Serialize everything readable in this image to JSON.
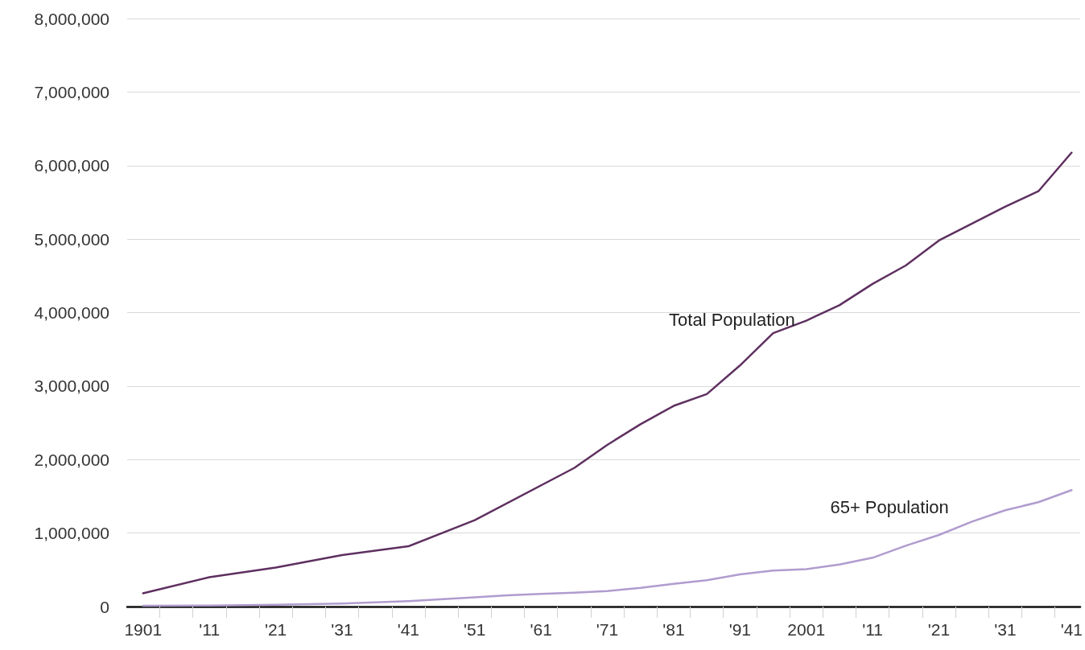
{
  "chart_data": {
    "type": "line",
    "series": [
      {
        "name": "Total Population",
        "color": "#5e3060",
        "x": [
          1901,
          1911,
          1921,
          1931,
          1941,
          1951,
          1966,
          1971,
          1976,
          1981,
          1986,
          1991,
          1996,
          2001,
          2006,
          2011,
          2016,
          2021,
          2026,
          2031,
          2036,
          2041
        ],
        "values": [
          180000,
          400000,
          530000,
          700000,
          820000,
          1175000,
          1885000,
          2200000,
          2480000,
          2730000,
          2890000,
          3280000,
          3720000,
          3890000,
          4100000,
          4390000,
          4640000,
          4980000,
          5210000,
          5440000,
          5650000,
          6175000
        ]
      },
      {
        "name": "65+ Population",
        "color": "#b09ccf",
        "x": [
          1901,
          1911,
          1921,
          1931,
          1941,
          1951,
          1956,
          1961,
          1966,
          1971,
          1976,
          1981,
          1986,
          1991,
          1996,
          2001,
          2006,
          2011,
          2016,
          2021,
          2026,
          2031,
          2036,
          2041
        ],
        "values": [
          10000,
          15000,
          25000,
          40000,
          73000,
          125000,
          153000,
          172000,
          190000,
          211000,
          255000,
          310000,
          358000,
          438000,
          489000,
          509000,
          572000,
          664000,
          828000,
          974000,
          1156000,
          1310000,
          1420000,
          1584000
        ]
      }
    ],
    "xlim": [
      1898.6,
      2042.3
    ],
    "xticks": [
      {
        "value": 1901,
        "label": "1901"
      },
      {
        "value": 1911,
        "label": "'11"
      },
      {
        "value": 1921,
        "label": "'21"
      },
      {
        "value": 1931,
        "label": "'31"
      },
      {
        "value": 1941,
        "label": "'41"
      },
      {
        "value": 1951,
        "label": "'51"
      },
      {
        "value": 1961,
        "label": "'61"
      },
      {
        "value": 1971,
        "label": "'71"
      },
      {
        "value": 1981,
        "label": "'81"
      },
      {
        "value": 1991,
        "label": "'91"
      },
      {
        "value": 2001,
        "label": "2001"
      },
      {
        "value": 2011,
        "label": "'11"
      },
      {
        "value": 2021,
        "label": "'21"
      },
      {
        "value": 2031,
        "label": "'31"
      },
      {
        "value": 2041,
        "label": "'41"
      },
      {
        "value": 1903.5,
        "label": null
      },
      {
        "value": 1908.5,
        "label": null
      },
      {
        "value": 1913.5,
        "label": null
      },
      {
        "value": 1918.5,
        "label": null
      },
      {
        "value": 1923.5,
        "label": null
      },
      {
        "value": 1928.5,
        "label": null
      },
      {
        "value": 1933.5,
        "label": null
      },
      {
        "value": 1938.5,
        "label": null
      },
      {
        "value": 1943.5,
        "label": null
      },
      {
        "value": 1948.5,
        "label": null
      },
      {
        "value": 1953.5,
        "label": null
      },
      {
        "value": 1958.5,
        "label": null
      },
      {
        "value": 1963.5,
        "label": null
      },
      {
        "value": 1968.5,
        "label": null
      },
      {
        "value": 1973.5,
        "label": null
      },
      {
        "value": 1978.5,
        "label": null
      },
      {
        "value": 1983.5,
        "label": null
      },
      {
        "value": 1988.5,
        "label": null
      },
      {
        "value": 1993.5,
        "label": null
      },
      {
        "value": 1998.5,
        "label": null
      },
      {
        "value": 2003.5,
        "label": null
      },
      {
        "value": 2008.5,
        "label": null
      },
      {
        "value": 2013.5,
        "label": null
      },
      {
        "value": 2018.5,
        "label": null
      },
      {
        "value": 2023.5,
        "label": null
      },
      {
        "value": 2028.5,
        "label": null
      },
      {
        "value": 2033.5,
        "label": null
      },
      {
        "value": 2038.5,
        "label": null
      }
    ],
    "ylim": [
      0,
      8000000
    ],
    "yticks": [
      {
        "value": 0,
        "label": "0"
      },
      {
        "value": 1000000,
        "label": "1,000,000"
      },
      {
        "value": 2000000,
        "label": "2,000,000"
      },
      {
        "value": 3000000,
        "label": "3,000,000"
      },
      {
        "value": 4000000,
        "label": "4,000,000"
      },
      {
        "value": 5000000,
        "label": "5,000,000"
      },
      {
        "value": 6000000,
        "label": "6,000,000"
      },
      {
        "value": 7000000,
        "label": "7,000,000"
      },
      {
        "value": 8000000,
        "label": "8,000,000"
      }
    ],
    "grid": "y",
    "legend": false,
    "marker": "none",
    "line_style": "solid"
  }
}
